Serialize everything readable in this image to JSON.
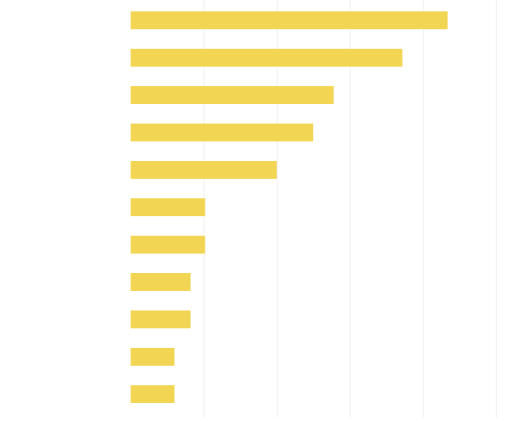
{
  "chart_data": {
    "type": "bar",
    "orientation": "horizontal",
    "title": "",
    "xlabel": "",
    "ylabel": "",
    "categories": [
      "",
      "",
      "",
      "",
      "",
      "",
      "",
      "",
      "",
      "",
      ""
    ],
    "values": [
      2.17,
      1.86,
      1.39,
      1.25,
      1.0,
      0.51,
      0.51,
      0.41,
      0.41,
      0.3,
      0.3
    ],
    "xlim": [
      0,
      2.5
    ],
    "grid": true,
    "colors": {
      "bar": "#f2d552",
      "grid": "#ececec",
      "background": "#ffffff"
    }
  }
}
